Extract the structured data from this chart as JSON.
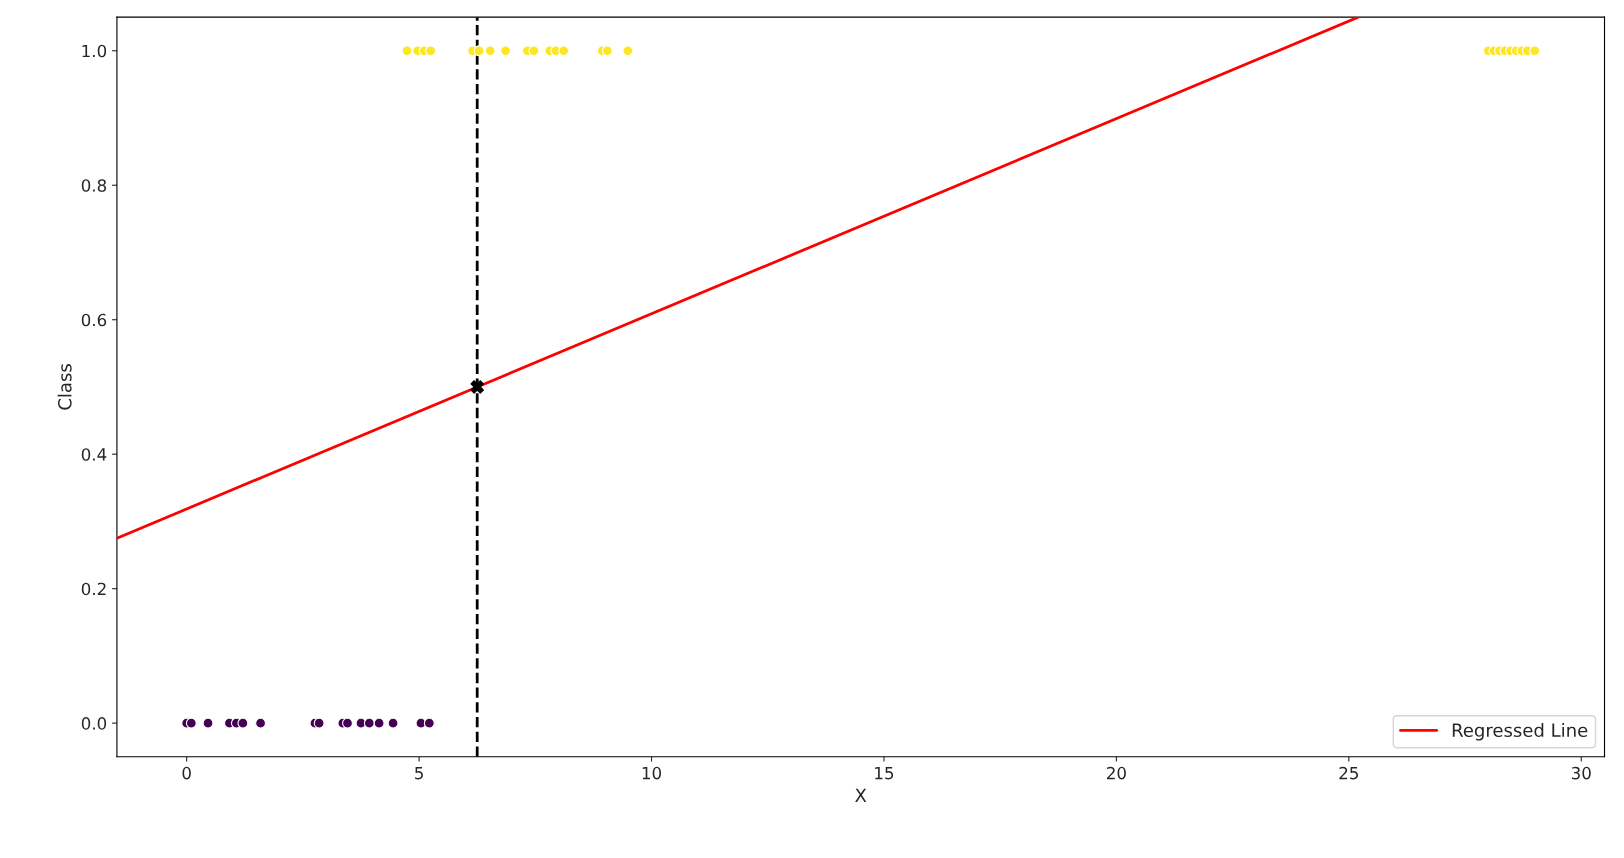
{
  "chart_data": {
    "type": "scatter",
    "xlabel": "X",
    "ylabel": "Class",
    "xlim": [
      -1.5,
      30.5
    ],
    "ylim": [
      -0.05,
      1.05
    ],
    "xticks": [
      0,
      5,
      10,
      15,
      20,
      25,
      30
    ],
    "yticks": [
      {
        "value": 0,
        "label": "0.0"
      },
      {
        "value": 0.2,
        "label": "0.2"
      },
      {
        "value": 0.4,
        "label": "0.4"
      },
      {
        "value": 0.6,
        "label": "0.6"
      },
      {
        "value": 0.8,
        "label": "0.8"
      },
      {
        "value": 1,
        "label": "1.0"
      }
    ],
    "grid": false,
    "legend": "bottom right",
    "series": [
      {
        "color": "#440154",
        "marker": "circle",
        "x": [
          0.0,
          0.1,
          0.46,
          0.92,
          1.07,
          1.21,
          1.59,
          2.76,
          2.85,
          3.36,
          3.46,
          3.75,
          3.93,
          4.14,
          4.44,
          5.04,
          5.22
        ],
        "values": [
          0,
          0,
          0,
          0,
          0,
          0,
          0,
          0,
          0,
          0,
          0,
          0,
          0,
          0,
          0,
          0,
          0
        ]
      },
      {
        "color": "#fde725",
        "marker": "circle",
        "x": [
          4.74,
          4.97,
          5.11,
          5.25,
          6.15,
          6.29,
          6.53,
          6.86,
          7.33,
          7.47,
          7.81,
          7.94,
          8.11,
          8.94,
          9.05,
          9.49,
          28.0,
          28.12,
          28.24,
          28.36,
          28.48,
          28.6,
          28.72,
          28.84,
          29.0
        ],
        "values": [
          1,
          1,
          1,
          1,
          1,
          1,
          1,
          1,
          1,
          1,
          1,
          1,
          1,
          1,
          1,
          1,
          1,
          1,
          1,
          1,
          1,
          1,
          1,
          1,
          1
        ]
      },
      {
        "type": "line",
        "name": "Regressed Line",
        "color": "#ff0000",
        "marker": "none",
        "line_style": "solid",
        "x": [
          -1.5,
          25.2
        ],
        "values": [
          0.275,
          1.05
        ]
      },
      {
        "color": "#000000",
        "marker": "cross",
        "x": [
          6.25
        ],
        "values": [
          0.5
        ]
      }
    ],
    "ref_lines": [
      {
        "axis": "x",
        "value": 6.25,
        "color": "#000000",
        "line_style": "dashed"
      }
    ]
  }
}
